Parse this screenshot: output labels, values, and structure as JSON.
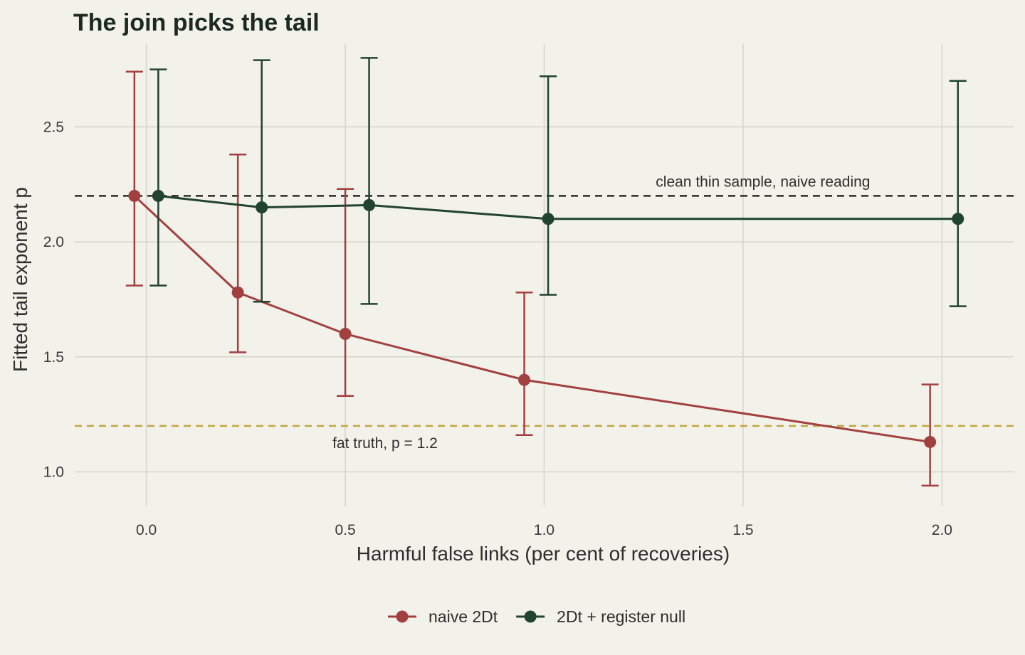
{
  "chart_data": {
    "type": "line",
    "title": "The join picks the tail",
    "xlabel": "Harmful false links (per cent of recoveries)",
    "ylabel": "Fitted tail exponent p",
    "xlim": [
      -0.18,
      2.18
    ],
    "ylim": [
      0.85,
      2.86
    ],
    "x_ticks": [
      0.0,
      0.5,
      1.0,
      1.5,
      2.0
    ],
    "x_tick_labels": [
      "0.0",
      "0.5",
      "1.0",
      "1.5",
      "2.0"
    ],
    "y_ticks": [
      1.0,
      1.5,
      2.0,
      2.5
    ],
    "y_tick_labels": [
      "1.0",
      "1.5",
      "2.0",
      "2.5"
    ],
    "grid": true,
    "legend_position": "bottom",
    "series": [
      {
        "name": "naive 2Dt",
        "color": "#a24040",
        "points": [
          {
            "x": -0.03,
            "y": 2.2,
            "lo": 1.81,
            "hi": 2.74
          },
          {
            "x": 0.23,
            "y": 1.78,
            "lo": 1.52,
            "hi": 2.38
          },
          {
            "x": 0.5,
            "y": 1.6,
            "lo": 1.33,
            "hi": 2.23
          },
          {
            "x": 0.95,
            "y": 1.4,
            "lo": 1.16,
            "hi": 1.78
          },
          {
            "x": 1.97,
            "y": 1.13,
            "lo": 0.94,
            "hi": 1.38
          }
        ]
      },
      {
        "name": "2Dt + register null",
        "color": "#21432f",
        "points": [
          {
            "x": 0.03,
            "y": 2.2,
            "lo": 1.81,
            "hi": 2.75
          },
          {
            "x": 0.29,
            "y": 2.15,
            "lo": 1.74,
            "hi": 2.79
          },
          {
            "x": 0.56,
            "y": 2.16,
            "lo": 1.73,
            "hi": 2.8
          },
          {
            "x": 1.01,
            "y": 2.1,
            "lo": 1.77,
            "hi": 2.72
          },
          {
            "x": 2.04,
            "y": 2.1,
            "lo": 1.72,
            "hi": 2.7
          }
        ]
      }
    ],
    "reference_lines": [
      {
        "y": 2.2,
        "color": "#2b2b2b",
        "label": "clean thin sample, naive reading",
        "label_x": 1.55,
        "label_pos": "above"
      },
      {
        "y": 1.2,
        "color": "#c4a640",
        "label": "fat truth, p = 1.2",
        "label_x": 0.6,
        "label_pos": "below"
      }
    ]
  }
}
